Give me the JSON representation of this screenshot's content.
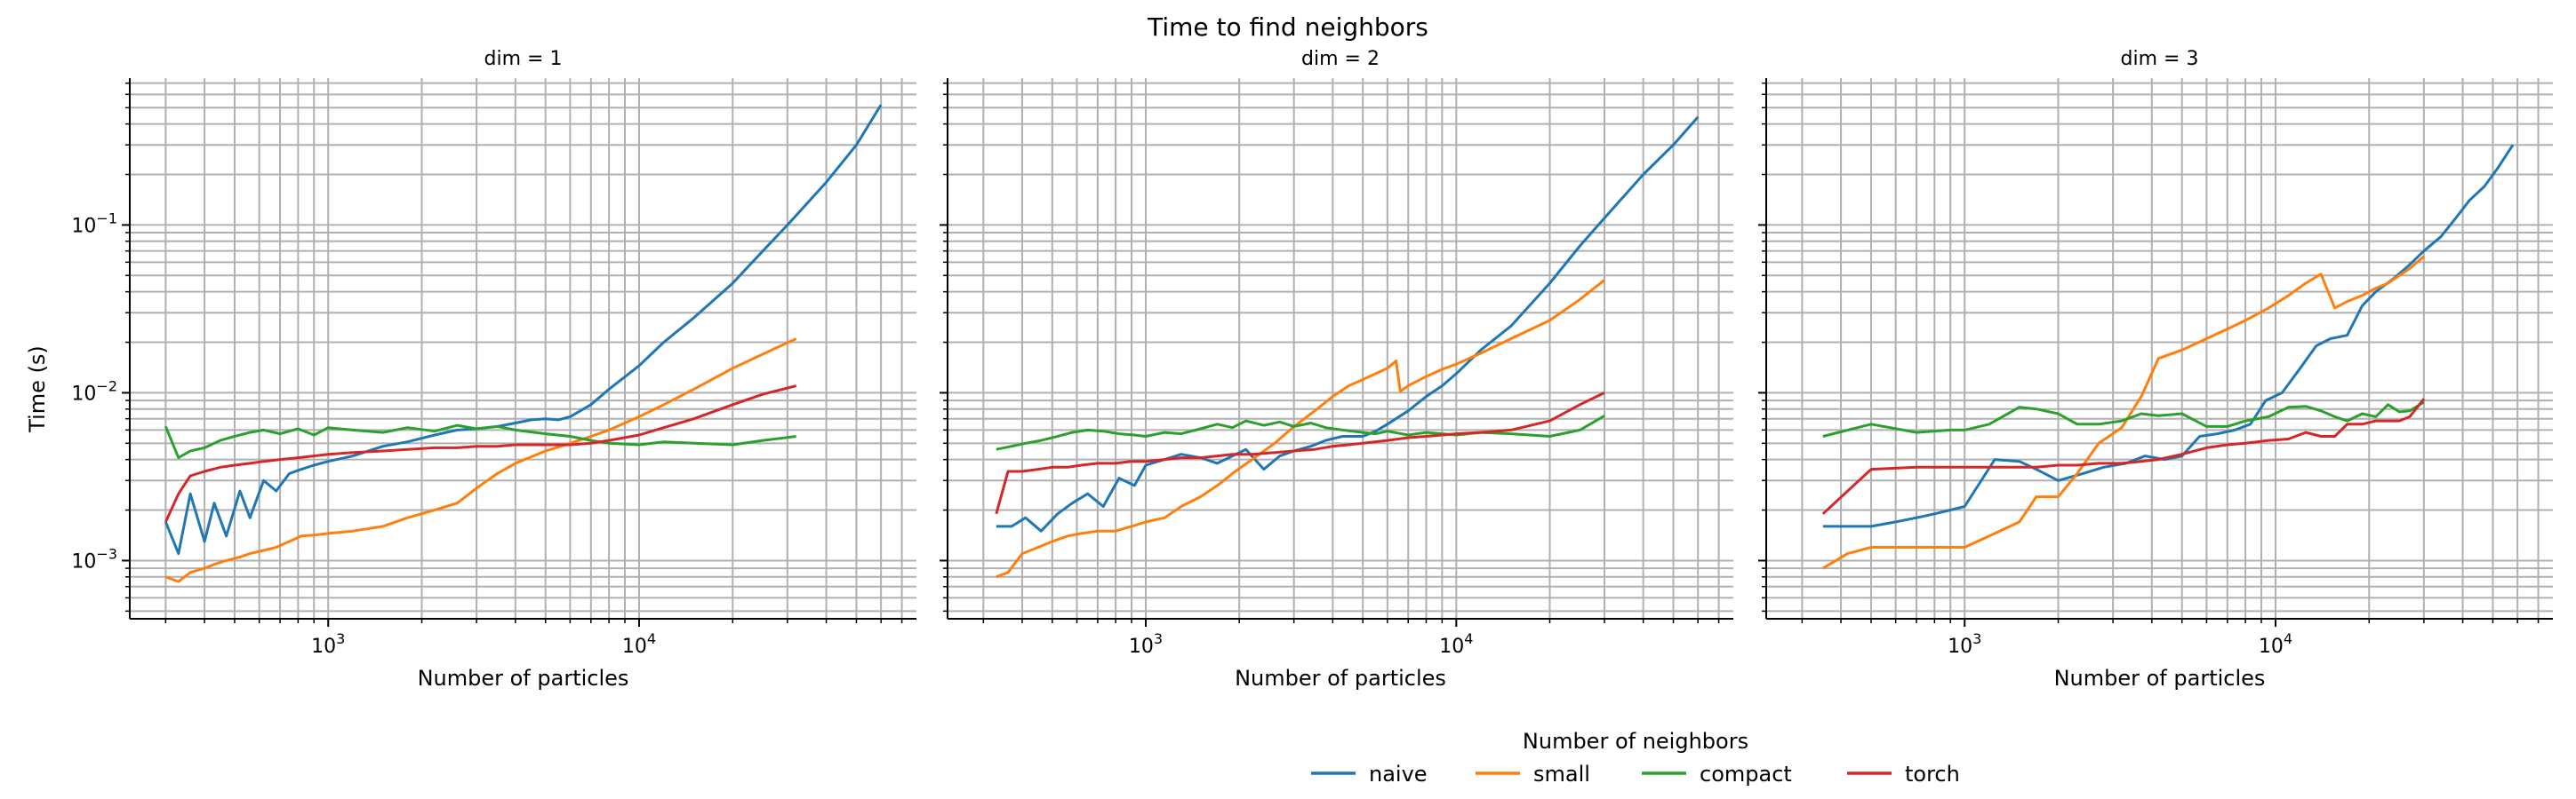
{
  "chart_data": {
    "type": "line",
    "title": "Time to find neighbors",
    "xlabel": "Number of particles",
    "ylabel": "Time (s)",
    "xscale": "log",
    "yscale": "log",
    "xlim": [
      230,
      78000
    ],
    "ylim": [
      0.00045,
      0.75
    ],
    "xticks": [
      {
        "value": 1000,
        "base": "10",
        "exp": "3"
      },
      {
        "value": 10000,
        "base": "10",
        "exp": "4"
      }
    ],
    "yticks": [
      {
        "value": 0.001,
        "base": "10",
        "exp": "−3"
      },
      {
        "value": 0.01,
        "base": "10",
        "exp": "−2"
      },
      {
        "value": 0.1,
        "base": "10",
        "exp": "−1"
      }
    ],
    "grid": true,
    "legend": {
      "title": "Number of neighbors",
      "position": "bottom-center",
      "entries": [
        "naive",
        "small",
        "compact",
        "torch"
      ]
    },
    "colors": {
      "naive": "#1f77b4",
      "small": "#ff7f0e",
      "compact": "#2ca02c",
      "torch": "#d62728"
    },
    "panels": [
      {
        "title": "dim = 1",
        "series": [
          {
            "name": "naive",
            "x": [
              300,
              330,
              360,
              400,
              430,
              470,
              520,
              560,
              620,
              680,
              750,
              820,
              900,
              1000,
              1200,
              1500,
              1800,
              2200,
              2600,
              3000,
              3500,
              4000,
              4500,
              5000,
              5500,
              6000,
              7000,
              8000,
              10000,
              12000,
              15000,
              20000,
              25000,
              30000,
              40000,
              50000,
              60000
            ],
            "y": [
              0.0017,
              0.0011,
              0.0025,
              0.0013,
              0.0022,
              0.0014,
              0.0026,
              0.0018,
              0.003,
              0.0026,
              0.0033,
              0.0035,
              0.0037,
              0.0039,
              0.0042,
              0.0048,
              0.0051,
              0.0056,
              0.006,
              0.0061,
              0.0063,
              0.0066,
              0.0069,
              0.007,
              0.0069,
              0.0072,
              0.0085,
              0.0105,
              0.0145,
              0.02,
              0.028,
              0.045,
              0.07,
              0.1,
              0.18,
              0.3,
              0.52
            ]
          },
          {
            "name": "small",
            "x": [
              300,
              330,
              360,
              400,
              430,
              470,
              520,
              560,
              620,
              680,
              750,
              820,
              900,
              1000,
              1200,
              1500,
              1800,
              2200,
              2600,
              3000,
              3500,
              4000,
              5000,
              6000,
              7000,
              8000,
              10000,
              12000,
              15000,
              20000,
              25000,
              32000
            ],
            "y": [
              0.0008,
              0.00075,
              0.00085,
              0.0009,
              0.00095,
              0.001,
              0.00105,
              0.0011,
              0.00115,
              0.0012,
              0.0013,
              0.0014,
              0.00142,
              0.00145,
              0.0015,
              0.0016,
              0.0018,
              0.002,
              0.0022,
              0.0027,
              0.0033,
              0.0038,
              0.0045,
              0.005,
              0.0055,
              0.006,
              0.0072,
              0.0085,
              0.0105,
              0.014,
              0.017,
              0.021
            ]
          },
          {
            "name": "compact",
            "x": [
              300,
              330,
              360,
              400,
              450,
              500,
              560,
              620,
              700,
              800,
              900,
              1000,
              1200,
              1500,
              1800,
              2200,
              2600,
              3000,
              3500,
              4000,
              5000,
              6000,
              7000,
              8000,
              10000,
              12000,
              15000,
              20000,
              25000,
              32000
            ],
            "y": [
              0.0063,
              0.0041,
              0.0045,
              0.0047,
              0.0052,
              0.0055,
              0.0058,
              0.006,
              0.0057,
              0.0061,
              0.0056,
              0.0062,
              0.006,
              0.0058,
              0.0062,
              0.0059,
              0.0064,
              0.0061,
              0.0063,
              0.006,
              0.0057,
              0.0055,
              0.0052,
              0.005,
              0.0049,
              0.0051,
              0.005,
              0.0049,
              0.0052,
              0.0055
            ]
          },
          {
            "name": "torch",
            "x": [
              300,
              330,
              360,
              400,
              450,
              500,
              560,
              620,
              700,
              800,
              900,
              1000,
              1200,
              1500,
              1800,
              2200,
              2600,
              3000,
              3500,
              4000,
              5000,
              6000,
              7000,
              8000,
              10000,
              12000,
              15000,
              20000,
              25000,
              32000
            ],
            "y": [
              0.0017,
              0.0025,
              0.0032,
              0.0034,
              0.0036,
              0.0037,
              0.0038,
              0.0039,
              0.004,
              0.0041,
              0.0042,
              0.0043,
              0.0044,
              0.0045,
              0.0046,
              0.0047,
              0.0047,
              0.0048,
              0.0048,
              0.0049,
              0.0049,
              0.0049,
              0.005,
              0.0052,
              0.0056,
              0.0062,
              0.007,
              0.0085,
              0.0098,
              0.011
            ]
          }
        ]
      },
      {
        "title": "dim = 2",
        "series": [
          {
            "name": "naive",
            "x": [
              330,
              370,
              410,
              460,
              520,
              580,
              650,
              730,
              820,
              920,
              1000,
              1150,
              1300,
              1500,
              1700,
              1900,
              2100,
              2400,
              2700,
              3000,
              3400,
              3800,
              4300,
              5000,
              5500,
              6000,
              7000,
              8000,
              9000,
              10000,
              12000,
              15000,
              20000,
              25000,
              30000,
              40000,
              50000,
              60000
            ],
            "y": [
              0.0016,
              0.0016,
              0.0018,
              0.0015,
              0.0019,
              0.0022,
              0.0025,
              0.0021,
              0.0031,
              0.0028,
              0.0037,
              0.004,
              0.0043,
              0.0041,
              0.0038,
              0.0042,
              0.0046,
              0.0035,
              0.0042,
              0.0045,
              0.0048,
              0.0052,
              0.0055,
              0.0055,
              0.0059,
              0.0065,
              0.0078,
              0.0095,
              0.011,
              0.013,
              0.018,
              0.025,
              0.045,
              0.075,
              0.11,
              0.2,
              0.3,
              0.44
            ]
          },
          {
            "name": "small",
            "x": [
              330,
              360,
              400,
              450,
              500,
              560,
              620,
              700,
              800,
              900,
              1000,
              1150,
              1300,
              1500,
              1700,
              1900,
              2200,
              2600,
              3000,
              3500,
              4000,
              4500,
              5000,
              5500,
              6000,
              6400,
              6600,
              7000,
              8000,
              9000,
              10000,
              12000,
              15000,
              20000,
              25000,
              30000
            ],
            "y": [
              0.0008,
              0.00085,
              0.0011,
              0.0012,
              0.0013,
              0.0014,
              0.00145,
              0.0015,
              0.0015,
              0.0016,
              0.0017,
              0.0018,
              0.0021,
              0.0024,
              0.0028,
              0.0033,
              0.004,
              0.005,
              0.0063,
              0.0078,
              0.0095,
              0.011,
              0.012,
              0.013,
              0.014,
              0.0155,
              0.0102,
              0.011,
              0.0125,
              0.0138,
              0.0148,
              0.0172,
              0.021,
              0.027,
              0.036,
              0.047
            ]
          },
          {
            "name": "compact",
            "x": [
              330,
              370,
              410,
              460,
              520,
              580,
              650,
              730,
              820,
              920,
              1000,
              1150,
              1300,
              1500,
              1700,
              1900,
              2100,
              2400,
              2700,
              3000,
              3400,
              3800,
              4300,
              5000,
              5500,
              6000,
              7000,
              8000,
              9000,
              10000,
              12000,
              15000,
              20000,
              25000,
              30000
            ],
            "y": [
              0.0046,
              0.0048,
              0.005,
              0.0052,
              0.0055,
              0.0058,
              0.006,
              0.0059,
              0.0057,
              0.0056,
              0.0055,
              0.0058,
              0.0057,
              0.0061,
              0.0065,
              0.0062,
              0.0068,
              0.0064,
              0.0067,
              0.0063,
              0.0066,
              0.0062,
              0.006,
              0.0058,
              0.0057,
              0.0059,
              0.0056,
              0.0058,
              0.0057,
              0.0056,
              0.0058,
              0.0057,
              0.0055,
              0.006,
              0.0073
            ]
          },
          {
            "name": "torch",
            "x": [
              330,
              360,
              400,
              450,
              500,
              560,
              620,
              700,
              800,
              900,
              1000,
              1150,
              1300,
              1500,
              1700,
              1900,
              2200,
              2600,
              3000,
              3500,
              4000,
              5000,
              6000,
              7000,
              8000,
              10000,
              12000,
              15000,
              20000,
              25000,
              30000
            ],
            "y": [
              0.0019,
              0.0034,
              0.0034,
              0.0035,
              0.0036,
              0.0036,
              0.0037,
              0.0038,
              0.0038,
              0.0039,
              0.0039,
              0.004,
              0.0041,
              0.0041,
              0.0042,
              0.0043,
              0.0043,
              0.0044,
              0.0045,
              0.0046,
              0.0048,
              0.005,
              0.0052,
              0.0054,
              0.0055,
              0.0057,
              0.0058,
              0.006,
              0.0068,
              0.0085,
              0.01
            ]
          }
        ]
      },
      {
        "title": "dim = 3",
        "series": [
          {
            "name": "naive",
            "x": [
              350,
              420,
              500,
              600,
              700,
              800,
              900,
              1000,
              1250,
              1500,
              1700,
              2000,
              2400,
              2800,
              3300,
              3800,
              4400,
              5000,
              5700,
              6500,
              7400,
              8300,
              9300,
              10500,
              12000,
              13500,
              15000,
              17000,
              19000,
              21000,
              24000,
              27000,
              30000,
              34000,
              38000,
              42000,
              47000,
              52000,
              58000
            ],
            "y": [
              0.0016,
              0.0016,
              0.0016,
              0.0017,
              0.0018,
              0.0019,
              0.002,
              0.0021,
              0.004,
              0.0039,
              0.0035,
              0.003,
              0.0033,
              0.0036,
              0.0038,
              0.0042,
              0.004,
              0.0042,
              0.0055,
              0.0057,
              0.006,
              0.0065,
              0.009,
              0.01,
              0.014,
              0.019,
              0.021,
              0.022,
              0.033,
              0.04,
              0.048,
              0.058,
              0.07,
              0.085,
              0.11,
              0.14,
              0.17,
              0.22,
              0.3
            ]
          },
          {
            "name": "small",
            "x": [
              350,
              420,
              500,
              600,
              700,
              800,
              900,
              1000,
              1200,
              1500,
              1700,
              2000,
              2300,
              2700,
              3200,
              3700,
              4200,
              5000,
              6000,
              7000,
              8000,
              9500,
              11000,
              12500,
              14000,
              15500,
              17000,
              19000,
              21000,
              23000,
              25000,
              27000,
              30000
            ],
            "y": [
              0.0009,
              0.0011,
              0.0012,
              0.0012,
              0.0012,
              0.0012,
              0.0012,
              0.0012,
              0.0014,
              0.0017,
              0.0024,
              0.0024,
              0.0033,
              0.005,
              0.0062,
              0.0095,
              0.016,
              0.018,
              0.021,
              0.024,
              0.027,
              0.032,
              0.038,
              0.045,
              0.051,
              0.032,
              0.035,
              0.038,
              0.042,
              0.045,
              0.05,
              0.055,
              0.065
            ]
          },
          {
            "name": "compact",
            "x": [
              350,
              500,
              700,
              900,
              1000,
              1200,
              1500,
              1700,
              2000,
              2300,
              2700,
              3200,
              3700,
              4200,
              5000,
              6000,
              7000,
              8000,
              9500,
              11000,
              12500,
              14000,
              15500,
              17000,
              19000,
              21000,
              23000,
              25000,
              27000,
              30000
            ],
            "y": [
              0.0055,
              0.0065,
              0.0058,
              0.006,
              0.006,
              0.0065,
              0.0082,
              0.008,
              0.0075,
              0.0065,
              0.0065,
              0.0068,
              0.0075,
              0.0073,
              0.0075,
              0.0063,
              0.0063,
              0.0068,
              0.0072,
              0.0082,
              0.0083,
              0.0078,
              0.0072,
              0.0068,
              0.0075,
              0.0072,
              0.0085,
              0.0077,
              0.0078,
              0.0088
            ]
          },
          {
            "name": "torch",
            "x": [
              350,
              500,
              700,
              900,
              1000,
              1200,
              1500,
              1700,
              2000,
              2300,
              2700,
              3200,
              3700,
              4200,
              5000,
              6000,
              7000,
              8000,
              9500,
              11000,
              12500,
              14000,
              15500,
              17000,
              19000,
              21000,
              23000,
              25000,
              27000,
              30000
            ],
            "y": [
              0.0019,
              0.0035,
              0.0036,
              0.0036,
              0.0036,
              0.0036,
              0.0036,
              0.0036,
              0.0037,
              0.0037,
              0.0038,
              0.0038,
              0.0039,
              0.004,
              0.0043,
              0.0047,
              0.0049,
              0.005,
              0.0052,
              0.0053,
              0.0058,
              0.0055,
              0.0055,
              0.0065,
              0.0065,
              0.0068,
              0.0068,
              0.0068,
              0.0072,
              0.0092
            ]
          }
        ]
      }
    ]
  }
}
